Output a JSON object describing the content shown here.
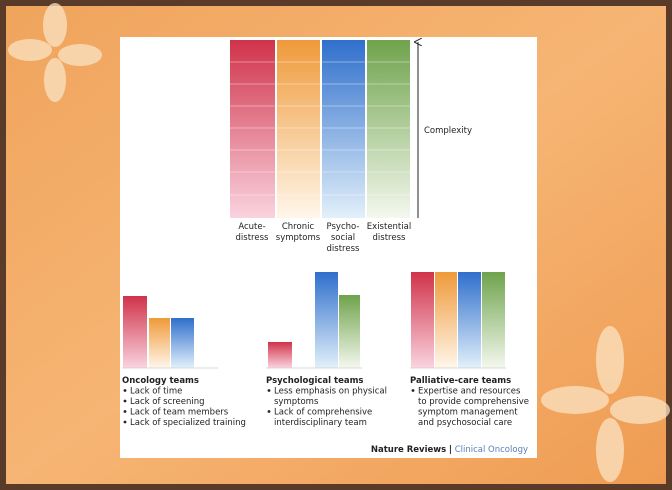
{
  "figure": {
    "top_chart": {
      "columns": [
        [
          "Acute-",
          "distress"
        ],
        [
          "Chronic",
          "symptoms"
        ],
        [
          "Psycho-",
          "social",
          "distress"
        ],
        [
          "Existential",
          "distress"
        ]
      ],
      "axis_label": "Complexity"
    },
    "panels": [
      {
        "title": "Oncology teams",
        "items": [
          [
            "Lack of time"
          ],
          [
            "Lack of screening"
          ],
          [
            "Lack of team members"
          ],
          [
            "Lack of specialized training"
          ]
        ]
      },
      {
        "title": "Psychological teams",
        "items": [
          [
            "Less emphasis on physical",
            "symptoms"
          ],
          [
            "Lack of comprehensive",
            "interdisciplinary team"
          ]
        ]
      },
      {
        "title": "Palliative-care teams",
        "items": [
          [
            "Expertise and resources",
            "to provide comprehensive",
            "symptom management",
            "and psychosocial care"
          ]
        ]
      }
    ],
    "credit": {
      "journal": "Nature Reviews",
      "separator": "|",
      "section": "Clinical Oncology"
    }
  }
}
